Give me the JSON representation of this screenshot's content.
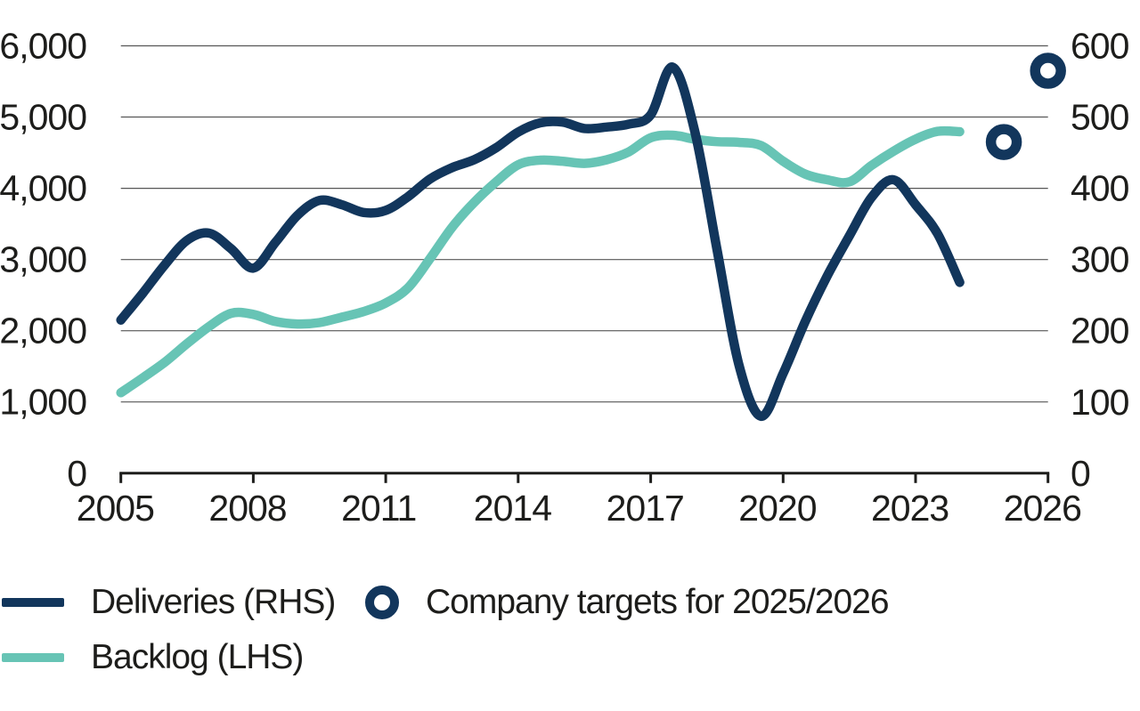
{
  "chart_data": {
    "type": "line",
    "title": "",
    "grid": "horizontal",
    "legend_position": "bottom-left",
    "x_axis": {
      "range": [
        2005,
        2026
      ],
      "tick_years": [
        2005,
        2008,
        2011,
        2014,
        2017,
        2020,
        2023,
        2026
      ],
      "tick_labels": [
        "2005",
        "2008",
        "2011",
        "2014",
        "2017",
        "2020",
        "2023",
        "2026"
      ]
    },
    "y_axis_left": {
      "title": "Backlog",
      "range": [
        0,
        6000
      ],
      "tick_labels": [
        "0",
        "1,000",
        "2,000",
        "3,000",
        "4,000",
        "5,000",
        "6,000"
      ]
    },
    "y_axis_right": {
      "title": "Deliveries",
      "range": [
        0,
        600
      ],
      "tick_labels": [
        "0",
        "100",
        "200",
        "300",
        "400",
        "500",
        "600"
      ]
    },
    "series": [
      {
        "id": "backlog",
        "name": "Backlog (LHS)",
        "axis": "left",
        "color": "#67C4B5",
        "x": [
          2005,
          2005.5,
          2006,
          2006.5,
          2007,
          2007.5,
          2008,
          2008.5,
          2009,
          2009.5,
          2010,
          2010.5,
          2011,
          2011.5,
          2012,
          2012.5,
          2013,
          2013.5,
          2014,
          2014.5,
          2015,
          2015.5,
          2016,
          2016.5,
          2017,
          2017.5,
          2018,
          2018.5,
          2019,
          2019.5,
          2020,
          2020.5,
          2021,
          2021.5,
          2022,
          2022.5,
          2023,
          2023.5,
          2024
        ],
        "values": [
          1130,
          1340,
          1560,
          1820,
          2060,
          2245,
          2230,
          2130,
          2095,
          2115,
          2190,
          2270,
          2390,
          2600,
          3010,
          3450,
          3800,
          4090,
          4330,
          4395,
          4380,
          4350,
          4400,
          4510,
          4710,
          4745,
          4690,
          4655,
          4645,
          4600,
          4380,
          4200,
          4120,
          4090,
          4320,
          4520,
          4690,
          4800,
          4795
        ]
      },
      {
        "id": "deliveries",
        "name": "Deliveries (RHS)",
        "axis": "right",
        "color": "#12365C",
        "x": [
          2005,
          2005.5,
          2006,
          2006.5,
          2007,
          2007.5,
          2008,
          2008.5,
          2009,
          2009.5,
          2010,
          2010.5,
          2011,
          2011.5,
          2012,
          2012.5,
          2013,
          2013.5,
          2014,
          2014.5,
          2015,
          2015.5,
          2016,
          2016.5,
          2017,
          2017.5,
          2018,
          2018.5,
          2019,
          2019.5,
          2020,
          2020.5,
          2021,
          2021.5,
          2022,
          2022.5,
          2023,
          2023.5,
          2024
        ],
        "values": [
          215,
          253,
          293,
          327,
          337,
          315,
          288,
          324,
          362,
          383,
          377,
          366,
          369,
          388,
          413,
          429,
          440,
          457,
          479,
          492,
          493,
          484,
          486,
          490,
          503,
          570,
          480,
          315,
          152,
          80,
          140,
          213,
          277,
          333,
          387,
          412,
          377,
          336,
          268
        ]
      }
    ],
    "targets": {
      "id": "targets",
      "name": "Company targets for 2025/2026",
      "axis": "right",
      "color": "#12365C",
      "points": [
        {
          "x": 2025,
          "value": 465
        },
        {
          "x": 2026,
          "value": 565
        }
      ]
    }
  },
  "legend": {
    "deliveries_label": "Deliveries (RHS)",
    "backlog_label": "Backlog (LHS)",
    "targets_label": "Company targets for 2025/2026"
  },
  "colors": {
    "navy": "#12365C",
    "teal": "#67C4B5",
    "grid": "#575757",
    "text": "#1D1D1B",
    "background": "#FFFFFF"
  }
}
